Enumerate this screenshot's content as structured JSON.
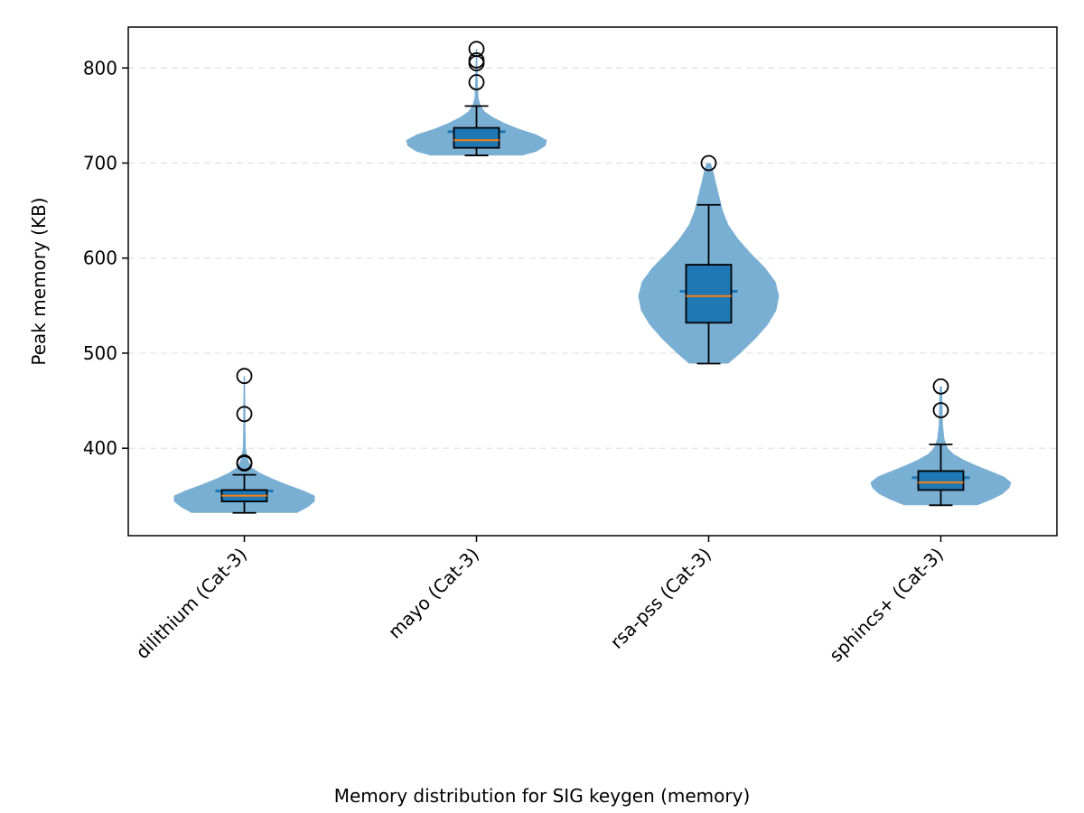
{
  "chart_data": {
    "type": "violin-box",
    "title": "",
    "xlabel": "Memory distribution for SIG keygen (memory)",
    "ylabel": "Peak memory (KB)",
    "ylim": [
      308,
      843
    ],
    "yticks": [
      400,
      500,
      600,
      700,
      800
    ],
    "grid": "y-dashed",
    "categories": [
      "dilithium (Cat-3)",
      "mayo (Cat-3)",
      "rsa-pss (Cat-3)",
      "sphincs+ (Cat-3)"
    ],
    "colors": {
      "violin": "#7aafd4",
      "box": "#1f77b4",
      "median": "#ff7f0e",
      "grid": "#e0e0e0"
    },
    "series": [
      {
        "category": "dilithium (Cat-3)",
        "min": 332,
        "q1": 344,
        "median": 350,
        "q3": 356,
        "max": 372,
        "mean": 355,
        "outliers": [
          384,
          385,
          436,
          476
        ],
        "violin_extent": [
          332,
          476
        ],
        "density": [
          [
            332,
            0.75
          ],
          [
            338,
            0.9
          ],
          [
            344,
            1.0
          ],
          [
            350,
            1.0
          ],
          [
            356,
            0.82
          ],
          [
            362,
            0.6
          ],
          [
            368,
            0.4
          ],
          [
            374,
            0.22
          ],
          [
            380,
            0.1
          ],
          [
            388,
            0.05
          ],
          [
            400,
            0.02
          ],
          [
            420,
            0.015
          ],
          [
            440,
            0.015
          ],
          [
            460,
            0.012
          ],
          [
            476,
            0.01
          ]
        ]
      },
      {
        "category": "mayo (Cat-3)",
        "min": 708,
        "q1": 716,
        "median": 724,
        "q3": 737,
        "max": 760,
        "mean": 733,
        "outliers": [
          785,
          805,
          808,
          820
        ],
        "violin_extent": [
          708,
          820
        ],
        "density": [
          [
            708,
            0.65
          ],
          [
            712,
            0.85
          ],
          [
            718,
            0.98
          ],
          [
            724,
            1.0
          ],
          [
            730,
            0.85
          ],
          [
            736,
            0.6
          ],
          [
            742,
            0.4
          ],
          [
            748,
            0.24
          ],
          [
            754,
            0.12
          ],
          [
            760,
            0.06
          ],
          [
            768,
            0.03
          ],
          [
            780,
            0.02
          ],
          [
            795,
            0.015
          ],
          [
            808,
            0.012
          ],
          [
            820,
            0.01
          ]
        ]
      },
      {
        "category": "rsa-pss (Cat-3)",
        "min": 489,
        "q1": 532,
        "median": 560,
        "q3": 593,
        "max": 656,
        "mean": 565,
        "outliers": [
          700
        ],
        "violin_extent": [
          489,
          700
        ],
        "density": [
          [
            489,
            0.28
          ],
          [
            500,
            0.45
          ],
          [
            515,
            0.66
          ],
          [
            530,
            0.84
          ],
          [
            545,
            0.96
          ],
          [
            560,
            1.0
          ],
          [
            575,
            0.95
          ],
          [
            590,
            0.8
          ],
          [
            605,
            0.6
          ],
          [
            620,
            0.42
          ],
          [
            635,
            0.28
          ],
          [
            650,
            0.2
          ],
          [
            665,
            0.15
          ],
          [
            680,
            0.1
          ],
          [
            690,
            0.07
          ],
          [
            700,
            0.03
          ]
        ]
      },
      {
        "category": "sphincs+ (Cat-3)",
        "min": 340,
        "q1": 356,
        "median": 364,
        "q3": 376,
        "max": 404,
        "mean": 369,
        "outliers": [
          440,
          465
        ],
        "violin_extent": [
          340,
          465
        ],
        "density": [
          [
            340,
            0.52
          ],
          [
            346,
            0.72
          ],
          [
            352,
            0.88
          ],
          [
            358,
            0.97
          ],
          [
            364,
            1.0
          ],
          [
            370,
            0.9
          ],
          [
            376,
            0.7
          ],
          [
            382,
            0.5
          ],
          [
            388,
            0.32
          ],
          [
            394,
            0.18
          ],
          [
            400,
            0.1
          ],
          [
            410,
            0.05
          ],
          [
            425,
            0.03
          ],
          [
            440,
            0.025
          ],
          [
            455,
            0.02
          ],
          [
            465,
            0.015
          ]
        ]
      }
    ]
  }
}
